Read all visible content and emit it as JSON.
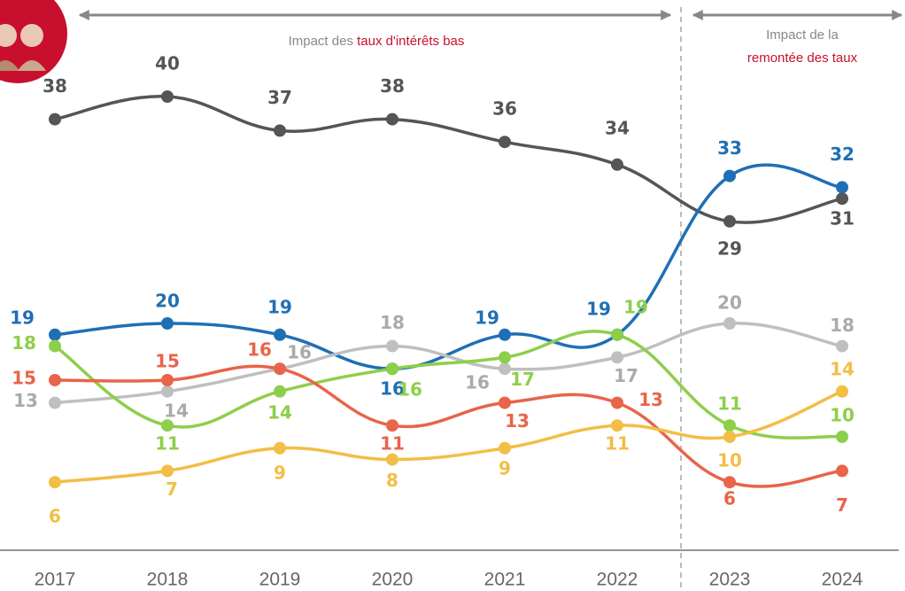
{
  "chart_data": {
    "type": "line",
    "annotations": {
      "left_prefix": "Impact des ",
      "left_emphasis": "taux d'intérêts bas",
      "right_line1": "Impact de la",
      "right_line2": "remontée des taux"
    },
    "x": [
      2017,
      2018,
      2019,
      2020,
      2021,
      2022,
      2023,
      2024
    ],
    "ylim": [
      0,
      40
    ],
    "series": [
      {
        "color": "#555555",
        "values": [
          38,
          40,
          37,
          38,
          36,
          34,
          29,
          31
        ]
      },
      {
        "color": "#1f6fb5",
        "values": [
          19,
          20,
          19,
          16,
          19,
          19,
          33,
          32
        ]
      },
      {
        "color": "#bfbfbf",
        "values": [
          13,
          14,
          16,
          18,
          16,
          17,
          20,
          18
        ]
      },
      {
        "color": "#8dcf4a",
        "values": [
          18,
          11,
          14,
          16,
          17,
          19,
          11,
          10
        ]
      },
      {
        "color": "#e8644a",
        "values": [
          15,
          15,
          16,
          11,
          13,
          13,
          6,
          7
        ]
      },
      {
        "color": "#f2be45",
        "values": [
          6,
          7,
          9,
          8,
          9,
          11,
          10,
          14
        ]
      }
    ]
  }
}
